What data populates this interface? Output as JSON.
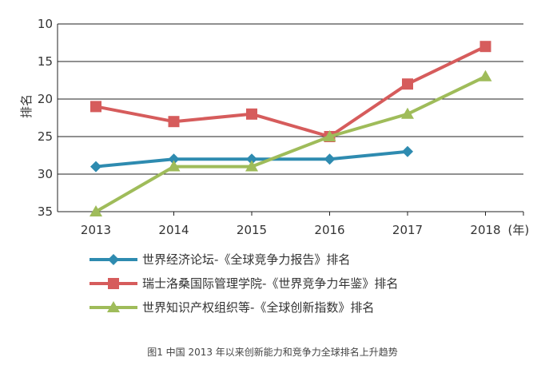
{
  "chart_data": {
    "type": "line",
    "ylabel": "排名",
    "x_unit": "(年)",
    "y_inverted": true,
    "ylim": [
      10,
      35
    ],
    "yticks": [
      10,
      15,
      20,
      25,
      30,
      35
    ],
    "categories": [
      "2013",
      "2014",
      "2015",
      "2016",
      "2017",
      "2018"
    ],
    "grid": "horizontal",
    "legend_position": "bottom",
    "series": [
      {
        "name": "世界经济论坛-《全球竞争力报告》排名",
        "color": "#2e8bb0",
        "marker": "diamond",
        "values": [
          29,
          28,
          28,
          28,
          27,
          null
        ]
      },
      {
        "name": "瑞士洛桑国际管理学院-《世界竞争力年鉴》排名",
        "color": "#d65c5c",
        "marker": "square",
        "values": [
          21,
          23,
          22,
          25,
          18,
          13
        ]
      },
      {
        "name": "世界知识产权组织等-《全球创新指数》排名",
        "color": "#9fbc5a",
        "marker": "triangle",
        "values": [
          35,
          29,
          29,
          25,
          22,
          17
        ]
      }
    ]
  },
  "caption": "图1 中国 2013 年以来创新能力和竞争力全球排名上升趋势"
}
